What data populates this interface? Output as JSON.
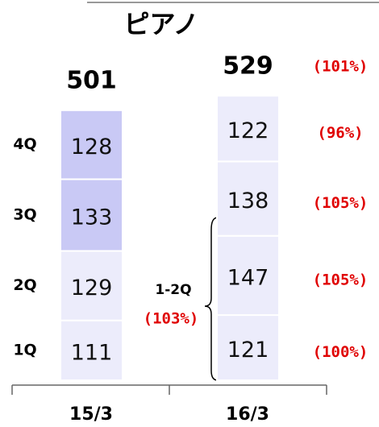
{
  "chart_data": {
    "type": "stacked_bar",
    "title": "ピアノ",
    "categories": [
      "15/3",
      "16/3"
    ],
    "series": [
      {
        "name": "1Q",
        "values": [
          111,
          121
        ],
        "colors": [
          "#ececfb",
          "#ececfb"
        ],
        "growth": 100,
        "growth_label": "(100%)"
      },
      {
        "name": "2Q",
        "values": [
          129,
          147
        ],
        "colors": [
          "#ececfb",
          "#ececfb"
        ],
        "growth": 105,
        "growth_label": "(105%)"
      },
      {
        "name": "3Q",
        "values": [
          133,
          138
        ],
        "colors": [
          "#c9c9f5",
          "#ececfb"
        ],
        "growth": 105,
        "growth_label": "(105%)"
      },
      {
        "name": "4Q",
        "values": [
          128,
          122
        ],
        "colors": [
          "#c9c9f5",
          "#ececfb"
        ],
        "growth": 96,
        "growth_label": "(96%)"
      }
    ],
    "totals": [
      501,
      529
    ],
    "total_growth": 101,
    "total_growth_label": "(101%)",
    "bracket": {
      "label": "1-2Q",
      "value": 103,
      "value_label": "(103%)"
    }
  }
}
